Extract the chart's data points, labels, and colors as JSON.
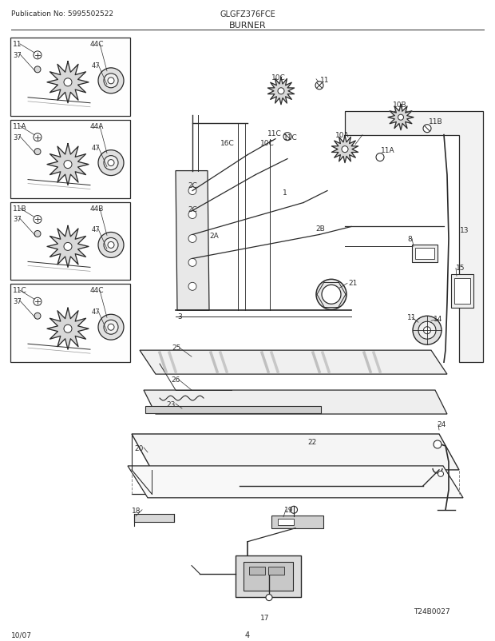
{
  "title": "BURNER",
  "model": "GLGFZ376FCE",
  "pub_no": "Publication No: 5995502522",
  "date": "10/07",
  "page": "4",
  "diagram_id": "T24B0027",
  "bg_color": "#ffffff",
  "lc": "#2a2a2a"
}
